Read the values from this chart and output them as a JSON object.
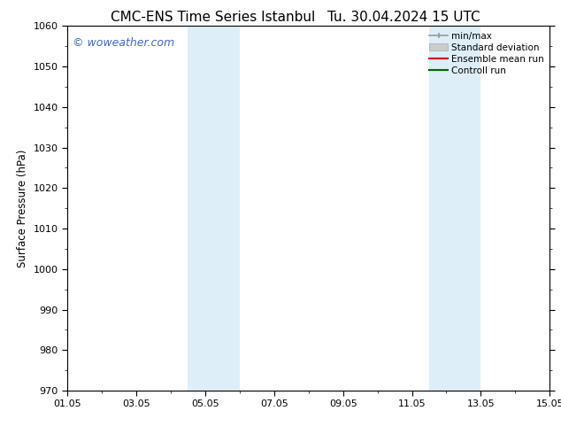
{
  "title_left": "CMC-ENS Time Series Istanbul",
  "title_right": "Tu. 30.04.2024 15 UTC",
  "ylabel": "Surface Pressure (hPa)",
  "ylim": [
    970,
    1060
  ],
  "yticks": [
    970,
    980,
    990,
    1000,
    1010,
    1020,
    1030,
    1040,
    1050,
    1060
  ],
  "xlim_start": 0,
  "xlim_end": 14,
  "xtick_labels": [
    "01.05",
    "03.05",
    "05.05",
    "07.05",
    "09.05",
    "11.05",
    "13.05",
    "15.05"
  ],
  "xtick_positions": [
    0,
    2,
    4,
    6,
    8,
    10,
    12,
    14
  ],
  "shaded_bands": [
    {
      "x_start": 3.5,
      "x_end": 5.0
    },
    {
      "x_start": 10.5,
      "x_end": 12.0
    }
  ],
  "band_color": "#ddeef8",
  "watermark_text": "© woweather.com",
  "watermark_color": "#4466bb",
  "legend_entries": [
    {
      "label": "min/max",
      "color": "#999999",
      "style": "line_with_caps"
    },
    {
      "label": "Standard deviation",
      "color": "#cccccc",
      "style": "filled_bar"
    },
    {
      "label": "Ensemble mean run",
      "color": "#cc0000",
      "style": "line"
    },
    {
      "label": "Controll run",
      "color": "#006600",
      "style": "line"
    }
  ],
  "bg_color": "#ffffff",
  "title_fontsize": 11,
  "label_fontsize": 8.5,
  "tick_fontsize": 8,
  "watermark_fontsize": 9,
  "legend_fontsize": 7.5
}
